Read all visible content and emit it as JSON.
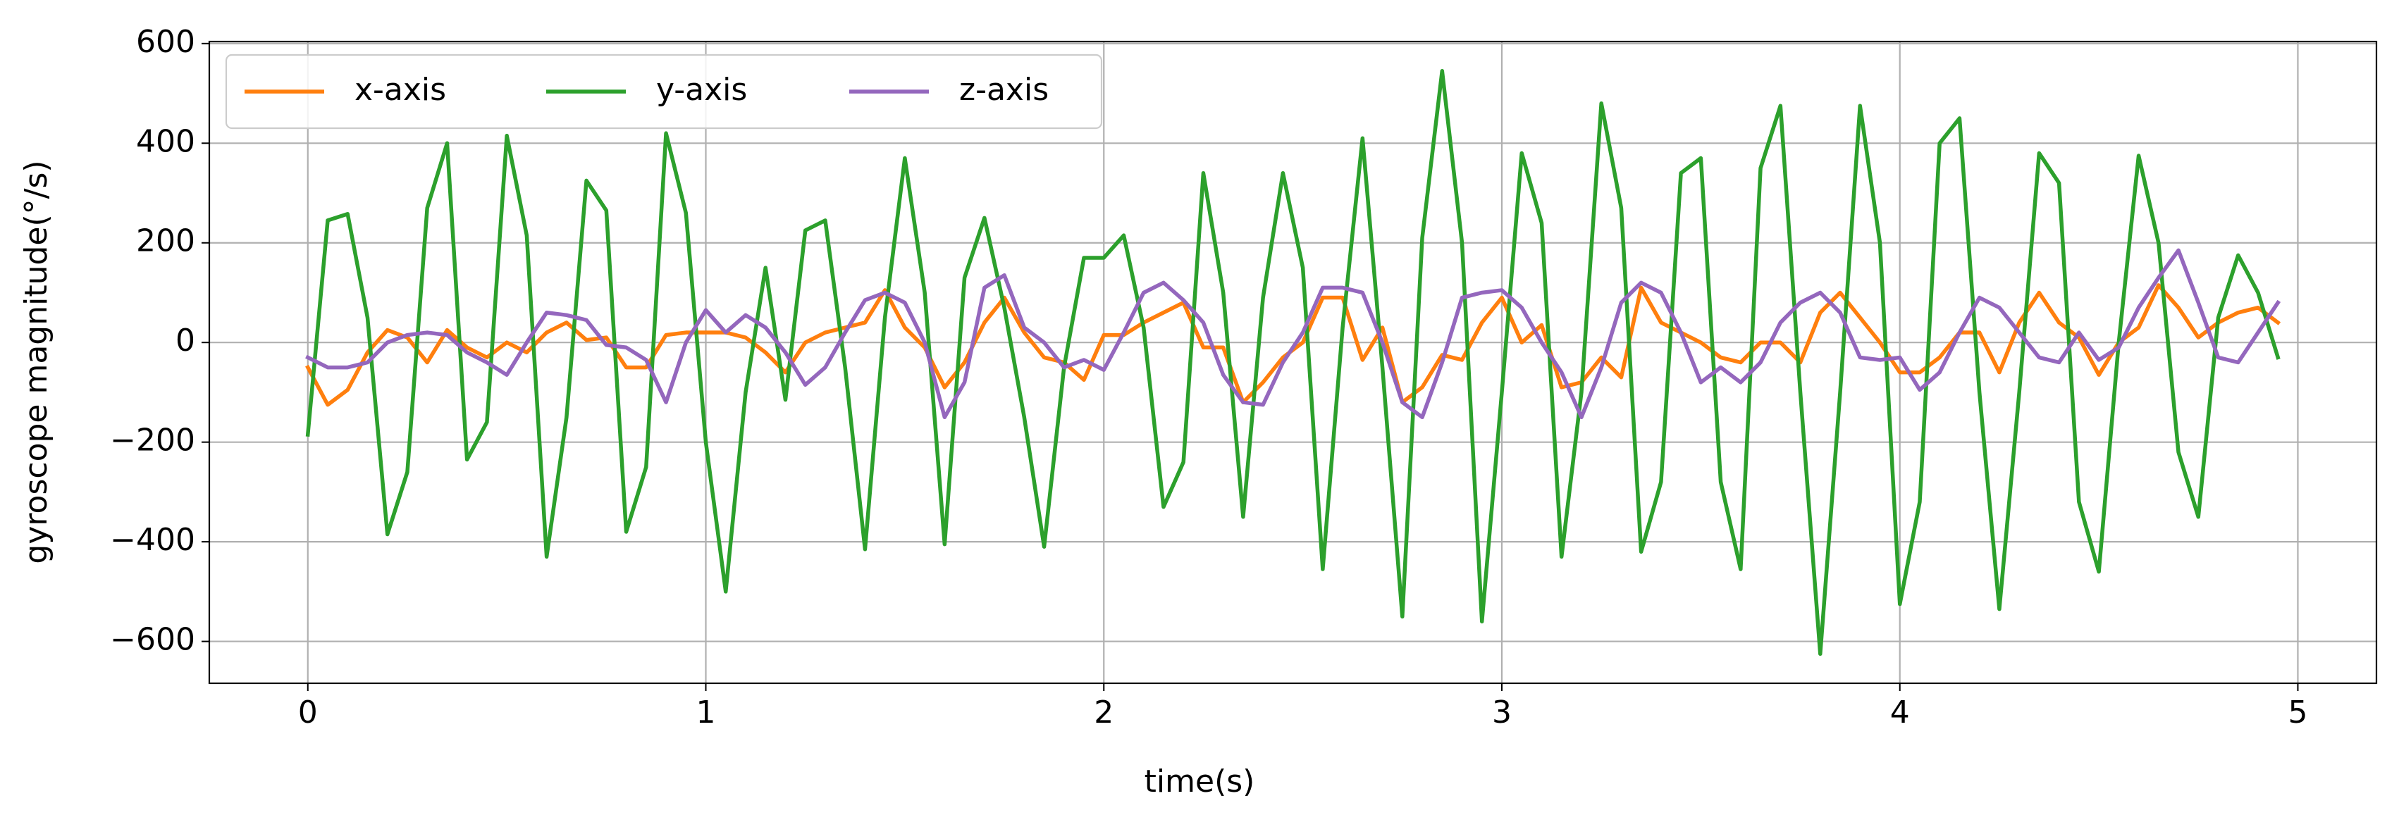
{
  "chart_data": {
    "type": "line",
    "xlabel": "time(s)",
    "ylabel": "gyroscope magnitude(°/s)",
    "x": [
      0,
      0.05,
      0.1,
      0.15,
      0.2,
      0.25,
      0.3,
      0.35,
      0.4,
      0.45,
      0.5,
      0.55,
      0.6,
      0.65,
      0.7,
      0.75,
      0.8,
      0.85,
      0.9,
      0.95,
      1,
      1.05,
      1.1,
      1.15,
      1.2,
      1.25,
      1.3,
      1.35,
      1.4,
      1.45,
      1.5,
      1.55,
      1.6,
      1.65,
      1.7,
      1.75,
      1.8,
      1.85,
      1.9,
      1.95,
      2,
      2.05,
      2.1,
      2.15,
      2.2,
      2.25,
      2.3,
      2.35,
      2.4,
      2.45,
      2.5,
      2.55,
      2.6,
      2.65,
      2.7,
      2.75,
      2.8,
      2.85,
      2.9,
      2.95,
      3,
      3.05,
      3.1,
      3.15,
      3.2,
      3.25,
      3.3,
      3.35,
      3.4,
      3.45,
      3.5,
      3.55,
      3.6,
      3.65,
      3.7,
      3.75,
      3.8,
      3.85,
      3.9,
      3.95,
      4,
      4.05,
      4.1,
      4.15,
      4.2,
      4.25,
      4.3,
      4.35,
      4.4,
      4.45,
      4.5,
      4.55,
      4.6,
      4.65,
      4.7,
      4.75,
      4.8,
      4.85,
      4.9,
      4.95
    ],
    "series": [
      {
        "name": "x-axis",
        "color": "#ff7f0e",
        "values": [
          -50,
          -125,
          -95,
          -20,
          25,
          10,
          -40,
          25,
          -10,
          -30,
          0,
          -20,
          20,
          40,
          5,
          10,
          -50,
          -50,
          15,
          20,
          20,
          20,
          10,
          -20,
          -60,
          0,
          20,
          30,
          40,
          105,
          30,
          -10,
          -90,
          -40,
          40,
          90,
          20,
          -30,
          -40,
          -75,
          15,
          15,
          40,
          60,
          80,
          -10,
          -10,
          -120,
          -80,
          -30,
          0,
          90,
          90,
          -35,
          30,
          -120,
          -90,
          -25,
          -35,
          40,
          90,
          0,
          35,
          -90,
          -80,
          -30,
          -70,
          110,
          40,
          20,
          0,
          -30,
          -40,
          0,
          0,
          -40,
          60,
          100,
          50,
          0,
          -60,
          -60,
          -30,
          20,
          20,
          -60,
          40,
          100,
          40,
          10,
          -65,
          0,
          30,
          115,
          70,
          10,
          40,
          60,
          70,
          40
        ]
      },
      {
        "name": "y-axis",
        "color": "#2ca02c",
        "values": [
          -185,
          245,
          258,
          50,
          -385,
          -260,
          270,
          400,
          -235,
          -160,
          415,
          215,
          -430,
          -150,
          325,
          265,
          -380,
          -250,
          420,
          260,
          -200,
          -500,
          -100,
          150,
          -115,
          225,
          245,
          -50,
          -415,
          50,
          370,
          100,
          -405,
          130,
          250,
          70,
          -150,
          -410,
          -50,
          170,
          170,
          215,
          30,
          -330,
          -240,
          340,
          100,
          -350,
          90,
          340,
          150,
          -455,
          30,
          410,
          -50,
          -550,
          210,
          545,
          200,
          -560,
          -100,
          380,
          240,
          -430,
          -100,
          480,
          270,
          -420,
          -280,
          340,
          370,
          -280,
          -455,
          350,
          475,
          -100,
          -625,
          -100,
          475,
          200,
          -525,
          -320,
          400,
          450,
          -100,
          -535,
          -100,
          380,
          320,
          -320,
          -460,
          0,
          375,
          200,
          -220,
          -350,
          50,
          175,
          100,
          -30
        ]
      },
      {
        "name": "z-axis",
        "color": "#9467bd",
        "values": [
          -30,
          -50,
          -50,
          -40,
          0,
          15,
          20,
          15,
          -20,
          -40,
          -65,
          0,
          60,
          55,
          45,
          -5,
          -10,
          -35,
          -120,
          0,
          65,
          20,
          55,
          30,
          -20,
          -85,
          -50,
          20,
          85,
          100,
          80,
          0,
          -150,
          -80,
          110,
          135,
          30,
          0,
          -50,
          -35,
          -55,
          20,
          100,
          120,
          85,
          40,
          -65,
          -120,
          -125,
          -40,
          20,
          110,
          110,
          100,
          0,
          -120,
          -150,
          -40,
          90,
          100,
          105,
          70,
          0,
          -60,
          -150,
          -50,
          80,
          120,
          100,
          20,
          -80,
          -50,
          -80,
          -40,
          40,
          80,
          100,
          60,
          -30,
          -35,
          -30,
          -95,
          -60,
          20,
          90,
          70,
          20,
          -30,
          -40,
          20,
          -35,
          -10,
          70,
          130,
          185,
          80,
          -30,
          -40,
          20,
          80
        ]
      }
    ],
    "xlim": [
      -0.2475,
      5.1975
    ],
    "xticks": [
      0,
      1,
      2,
      3,
      4,
      5
    ],
    "ylim": [
      -684,
      604
    ],
    "yticks": [
      {
        "value": -600,
        "label": "−600"
      },
      {
        "value": -400,
        "label": "−400"
      },
      {
        "value": -200,
        "label": "−200"
      },
      0,
      200,
      400,
      600
    ],
    "grid": true,
    "legend": "upper left"
  }
}
